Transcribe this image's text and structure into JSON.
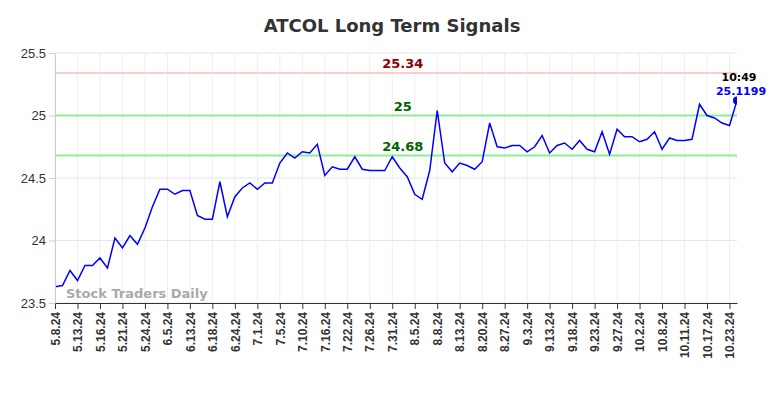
{
  "chart_data": {
    "type": "line",
    "title": "ATCOL Long Term Signals",
    "watermark": "Stock Traders Daily",
    "time_label": "10:49",
    "color": "#0000ff",
    "grid": true,
    "categories": [
      "5.8.24",
      null,
      null,
      "5.13.24",
      null,
      null,
      "5.16.24",
      null,
      null,
      "5.21.24",
      null,
      null,
      "5.24.24",
      null,
      null,
      "6.5.24",
      null,
      null,
      "6.13.24",
      null,
      null,
      "6.18.24",
      null,
      null,
      "6.24.24",
      null,
      null,
      "7.1.24",
      null,
      null,
      "7.5.24",
      null,
      null,
      "7.10.24",
      null,
      null,
      "7.16.24",
      null,
      null,
      "7.22.24",
      null,
      null,
      "7.26.24",
      null,
      null,
      "7.31.24",
      null,
      null,
      "8.5.24",
      null,
      null,
      "8.8.24",
      null,
      null,
      "8.13.24",
      null,
      null,
      "8.20.24",
      null,
      null,
      "8.27.24",
      null,
      null,
      "9.3.24",
      null,
      null,
      "9.13.24",
      null,
      null,
      "9.18.24",
      null,
      null,
      "9.23.24",
      null,
      null,
      "9.27.24",
      null,
      null,
      "10.2.24",
      null,
      null,
      "10.8.24",
      null,
      null,
      "10.11.24",
      null,
      null,
      "10.17.24",
      null,
      null,
      "10.23.24",
      null
    ],
    "values": [
      23.63,
      23.64,
      23.76,
      23.68,
      23.8,
      23.8,
      23.86,
      23.78,
      24.02,
      23.94,
      24.04,
      23.97,
      24.1,
      24.27,
      24.41,
      24.41,
      24.37,
      24.4,
      24.4,
      24.2,
      24.17,
      24.17,
      24.47,
      24.19,
      24.35,
      24.42,
      24.46,
      24.41,
      24.46,
      24.46,
      24.62,
      24.7,
      24.66,
      24.71,
      24.7,
      24.77,
      24.52,
      24.59,
      24.57,
      24.57,
      24.67,
      24.57,
      24.56,
      24.56,
      24.56,
      24.67,
      24.58,
      24.51,
      24.37,
      24.33,
      24.56,
      25.04,
      24.62,
      24.55,
      24.62,
      24.6,
      24.57,
      24.63,
      24.94,
      24.75,
      24.74,
      24.76,
      24.76,
      24.71,
      24.75,
      24.84,
      24.7,
      24.76,
      24.78,
      24.73,
      24.8,
      24.73,
      24.71,
      24.87,
      24.69,
      24.89,
      24.83,
      24.83,
      24.79,
      24.81,
      24.87,
      24.73,
      24.82,
      24.8,
      24.8,
      24.81,
      25.09,
      25.0,
      24.98,
      24.94,
      24.92,
      25.1199
    ],
    "ylim": [
      23.5,
      25.5
    ],
    "yticks": [
      23.5,
      24,
      24.5,
      25,
      25.5
    ],
    "annotations": [
      {
        "value": 25.34,
        "label": "25.34",
        "color": "#ffcccc",
        "text_color": "#8b0000"
      },
      {
        "value": 25,
        "label": "25",
        "color": "#90ee90",
        "text_color": "#006400"
      },
      {
        "value": 24.68,
        "label": "24.68",
        "color": "#90ee90",
        "text_color": "#006400"
      }
    ]
  }
}
